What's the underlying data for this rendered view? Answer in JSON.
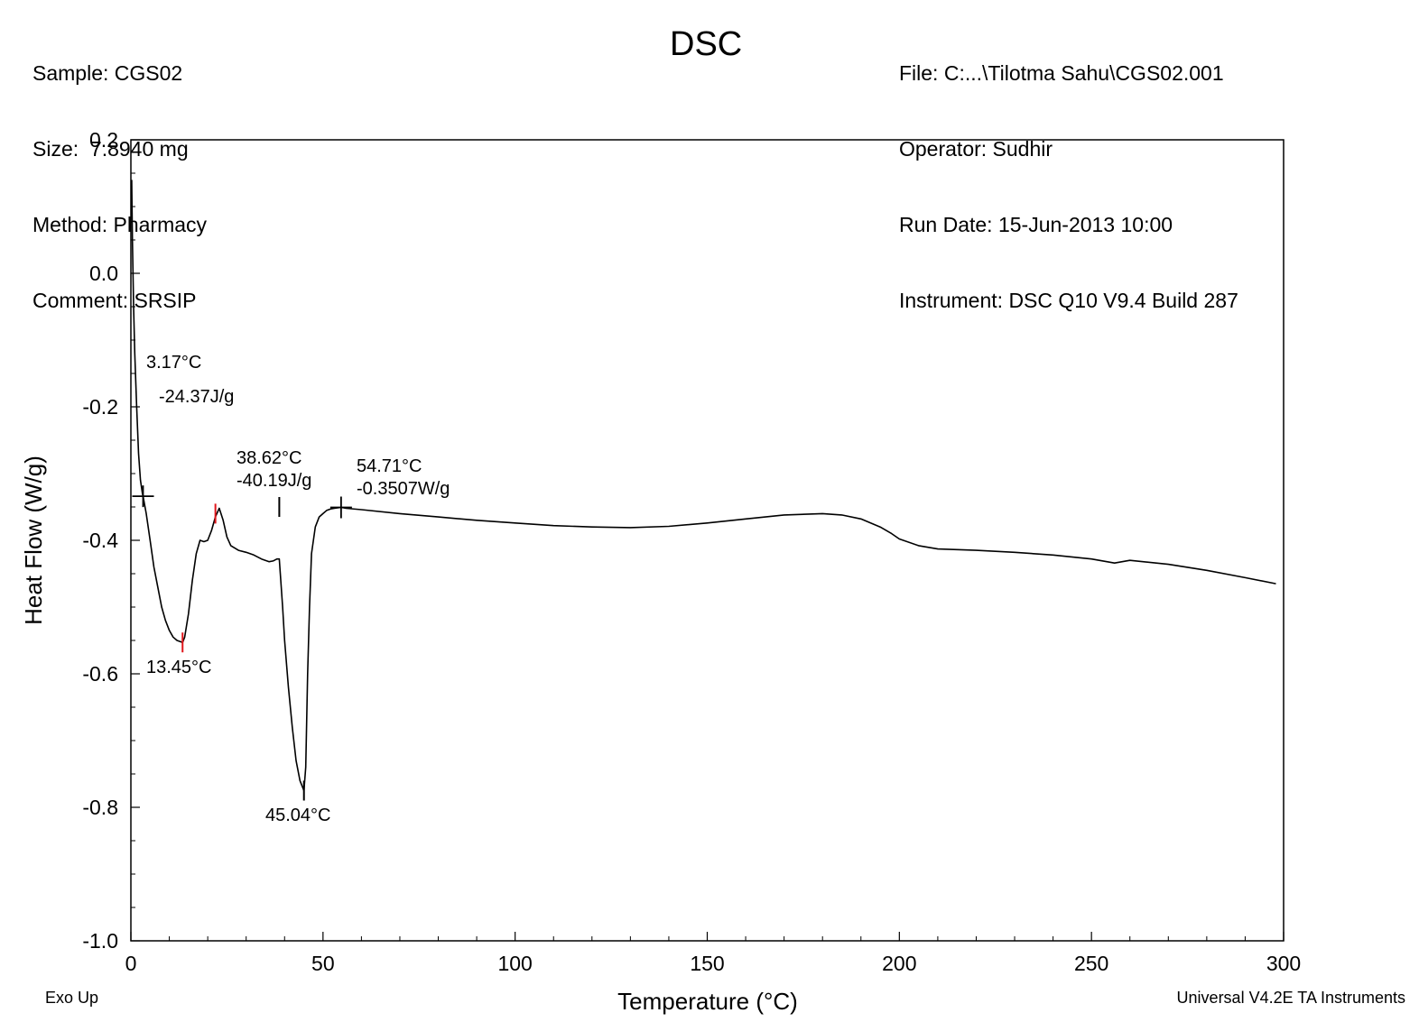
{
  "header": {
    "left": [
      {
        "label": "Sample:",
        "value": "CGS02"
      },
      {
        "label": "Size:",
        "value": " 7.8940 mg"
      },
      {
        "label": "Method:",
        "value": "Pharmacy"
      },
      {
        "label": "Comment:",
        "value": "SRSIP"
      }
    ],
    "title": "DSC",
    "right": [
      {
        "label": "File:",
        "value": "C:...\\Tilotma Sahu\\CGS02.001"
      },
      {
        "label": "Operator:",
        "value": "Sudhir"
      },
      {
        "label": "Run Date:",
        "value": "15-Jun-2013 10:00"
      },
      {
        "label": "Instrument:",
        "value": "DSC Q10 V9.4 Build 287"
      }
    ]
  },
  "footer": {
    "exo": "Exo Up",
    "software": "Universal V4.2E TA Instruments"
  },
  "colors": {
    "curve": "#000000",
    "marker_red": "#e0161b"
  },
  "chart_data": {
    "type": "line",
    "title": "DSC",
    "xlabel": "Temperature (°C)",
    "ylabel": "Heat Flow (W/g)",
    "xlim": [
      0,
      300
    ],
    "ylim": [
      -1.0,
      0.2
    ],
    "xticks": [
      0,
      50,
      100,
      150,
      200,
      250,
      300
    ],
    "yticks": [
      0.2,
      0.0,
      -0.2,
      -0.4,
      -0.6,
      -0.8,
      -1.0
    ],
    "yticklabels": [
      "0.2",
      "0.0",
      "-0.2",
      "-0.4",
      "-0.6",
      "-0.8",
      "-1.0"
    ],
    "grid": false,
    "series": [
      {
        "x": [
          0.2,
          0.4,
          0.7,
          1.0,
          1.5,
          2.0,
          2.5,
          3.0,
          3.17,
          4.0,
          5.0,
          6.0,
          7.0,
          8.0,
          9.0,
          10.0,
          11.0,
          12.0,
          13.0,
          13.45,
          14.0,
          15.0,
          16.0,
          17.0,
          18.0,
          19.0,
          20.0,
          21.0,
          22.0,
          23.0,
          24.0,
          25.0,
          26.0,
          28.0,
          30.0,
          32.0,
          34.0,
          36.0,
          37.0,
          38.0,
          38.62,
          39.5,
          40.0,
          41.0,
          42.0,
          43.0,
          44.0,
          45.04,
          45.5,
          46.0,
          46.5,
          47.0,
          48.0,
          49.0,
          50.0,
          51.0,
          52.0,
          53.0,
          54.71,
          56.0,
          60.0,
          70.0,
          80.0,
          90.0,
          100.0,
          110.0,
          120.0,
          130.0,
          140.0,
          150.0,
          160.0,
          170.0,
          180.0,
          185.0,
          190.0,
          195.0,
          198.0,
          200.0,
          205.0,
          210.0,
          220.0,
          230.0,
          240.0,
          250.0,
          254.0,
          256.0,
          260.0,
          270.0,
          280.0,
          290.0,
          298.0
        ],
        "y": [
          0.14,
          0.05,
          -0.05,
          -0.12,
          -0.2,
          -0.27,
          -0.31,
          -0.33,
          -0.334,
          -0.36,
          -0.4,
          -0.44,
          -0.47,
          -0.5,
          -0.52,
          -0.535,
          -0.545,
          -0.55,
          -0.552,
          -0.553,
          -0.545,
          -0.51,
          -0.46,
          -0.42,
          -0.4,
          -0.402,
          -0.4,
          -0.385,
          -0.365,
          -0.352,
          -0.37,
          -0.395,
          -0.408,
          -0.415,
          -0.418,
          -0.422,
          -0.428,
          -0.432,
          -0.431,
          -0.428,
          -0.428,
          -0.5,
          -0.55,
          -0.62,
          -0.68,
          -0.73,
          -0.76,
          -0.775,
          -0.74,
          -0.6,
          -0.5,
          -0.42,
          -0.38,
          -0.365,
          -0.36,
          -0.355,
          -0.353,
          -0.352,
          -0.3507,
          -0.352,
          -0.354,
          -0.36,
          -0.365,
          -0.37,
          -0.374,
          -0.378,
          -0.38,
          -0.381,
          -0.379,
          -0.374,
          -0.368,
          -0.362,
          -0.36,
          -0.362,
          -0.368,
          -0.38,
          -0.39,
          -0.398,
          -0.408,
          -0.413,
          -0.415,
          -0.418,
          -0.422,
          -0.428,
          -0.432,
          -0.434,
          -0.43,
          -0.436,
          -0.445,
          -0.456,
          -0.465
        ]
      }
    ],
    "annotations": [
      {
        "lines": [
          "3.17°C"
        ],
        "x": 3.17
      },
      {
        "lines": [
          "-24.37J/g"
        ],
        "x": 3.17
      },
      {
        "lines": [
          "13.45°C"
        ],
        "x": 13.45
      },
      {
        "lines": [
          "38.62°C",
          "-40.19J/g"
        ],
        "x": 38.62
      },
      {
        "lines": [
          "45.04°C"
        ],
        "x": 45.04
      },
      {
        "lines": [
          "54.71°C",
          "-0.3507W/g"
        ],
        "x": 54.71
      }
    ],
    "markers": [
      {
        "type": "cross",
        "x": 3.17,
        "y": -0.334,
        "color": "#000000"
      },
      {
        "type": "cross",
        "x": 54.71,
        "y": -0.3507,
        "color": "#000000"
      },
      {
        "type": "tick",
        "x": 13.45,
        "y": -0.553,
        "color": "#e0161b"
      },
      {
        "type": "tick",
        "x": 22.0,
        "y": -0.36,
        "color": "#e0161b"
      },
      {
        "type": "tick",
        "x": 38.62,
        "y": -0.35,
        "color": "#000000"
      },
      {
        "type": "tick",
        "x": 45.04,
        "y": -0.775,
        "color": "#000000"
      }
    ]
  }
}
